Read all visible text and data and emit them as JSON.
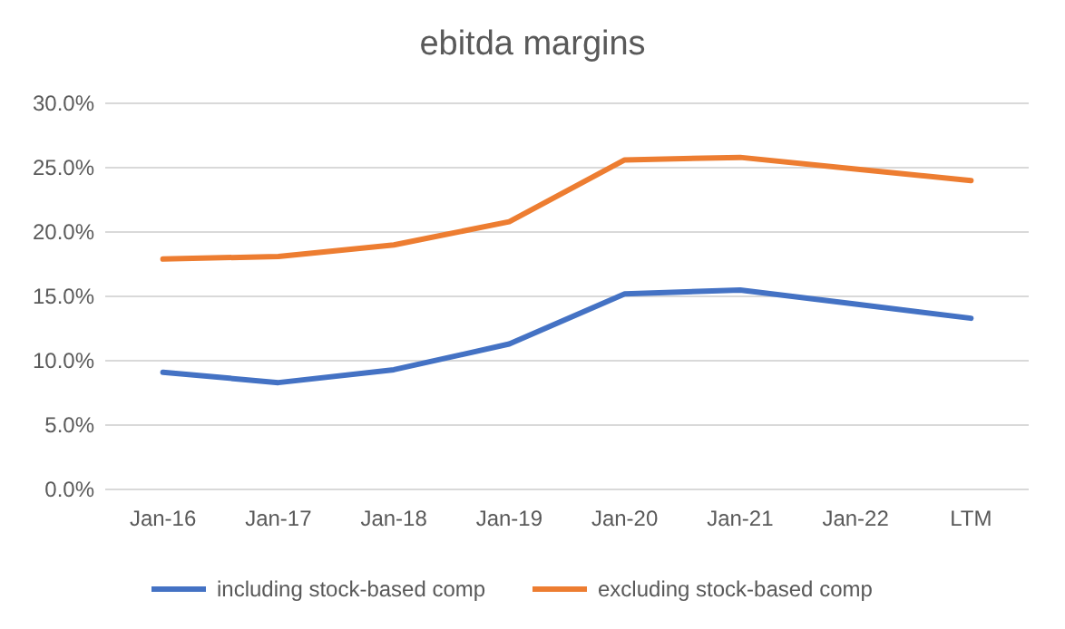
{
  "chart_data": {
    "type": "line",
    "title": "ebitda margins",
    "categories": [
      "Jan-16",
      "Jan-17",
      "Jan-18",
      "Jan-19",
      "Jan-20",
      "Jan-21",
      "Jan-22",
      "LTM"
    ],
    "series": [
      {
        "name": "including stock-based comp",
        "color": "#4472c4",
        "values": [
          9.1,
          8.3,
          9.3,
          11.3,
          15.2,
          15.5,
          14.4,
          13.3
        ]
      },
      {
        "name": "excluding stock-based comp",
        "color": "#ed7d31",
        "values": [
          17.9,
          18.1,
          19.0,
          20.8,
          25.6,
          25.8,
          24.9,
          24.0
        ]
      }
    ],
    "ylim": [
      0,
      30
    ],
    "yticks": [
      {
        "value": 0,
        "label": "0.0%"
      },
      {
        "value": 5,
        "label": "5.0%"
      },
      {
        "value": 10,
        "label": "10.0%"
      },
      {
        "value": 15,
        "label": "15.0%"
      },
      {
        "value": 20,
        "label": "20.0%"
      },
      {
        "value": 25,
        "label": "25.0%"
      },
      {
        "value": 30,
        "label": "30.0%"
      }
    ],
    "grid": "y",
    "legend": "bottom",
    "marker": "none",
    "line_style": "solid"
  }
}
